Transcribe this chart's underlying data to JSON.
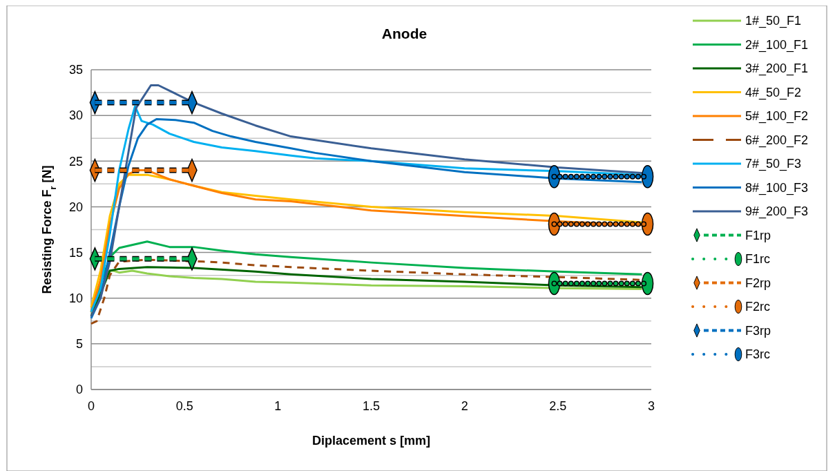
{
  "chart_data": {
    "type": "line",
    "title": "Anode",
    "xlabel": "Diplacement s [mm]",
    "ylabel": "Resisting Force F$_{r}$ [N]",
    "xlim": [
      0,
      3
    ],
    "xticks": [
      0,
      0.5,
      1,
      1.5,
      2,
      2.5,
      3
    ],
    "ylim": [
      0,
      35
    ],
    "yticks": [
      0,
      {
        "value": 2.5,
        "label": null
      },
      5,
      {
        "value": 7.5,
        "label": null
      },
      10,
      {
        "value": 12.5,
        "label": null
      },
      15,
      {
        "value": 17.5,
        "label": null
      },
      20,
      {
        "value": 22.5,
        "label": null
      },
      25,
      {
        "value": 27.5,
        "label": null
      },
      30,
      {
        "value": 32.5,
        "label": null
      },
      35
    ],
    "grid": "y",
    "legend": "right",
    "series": [
      {
        "name": "1#_50_F1",
        "color": "#92d050",
        "x": [
          0,
          0.05,
          0.1,
          0.12,
          0.15,
          0.22,
          0.3,
          0.42,
          0.55,
          0.7,
          0.88,
          1.07,
          1.5,
          2,
          2.5,
          2.95
        ],
        "values": [
          9,
          11,
          13,
          13,
          12.8,
          13,
          12.7,
          12.4,
          12.2,
          12.1,
          11.8,
          11.7,
          11.4,
          11.3,
          11.1,
          11
        ]
      },
      {
        "name": "2#_100_F1",
        "color": "#00b050",
        "x": [
          0,
          0.05,
          0.1,
          0.15,
          0.3,
          0.42,
          0.55,
          0.7,
          0.88,
          1.07,
          1.5,
          2,
          2.5,
          2.95
        ],
        "values": [
          8.5,
          11.5,
          14.5,
          15.5,
          16.2,
          15.6,
          15.6,
          15.2,
          14.8,
          14.5,
          13.9,
          13.3,
          12.9,
          12.6
        ]
      },
      {
        "name": "3#_200_F1",
        "color": "#006400",
        "x": [
          0,
          0.05,
          0.1,
          0.15,
          0.3,
          0.55,
          0.88,
          1.07,
          1.5,
          2,
          2.5,
          2.95
        ],
        "values": [
          8,
          10.5,
          13,
          13.2,
          13.4,
          13.3,
          12.9,
          12.6,
          12.1,
          11.8,
          11.4,
          11.2
        ]
      },
      {
        "name": "4#_50_F2",
        "color": "#ffc000",
        "x": [
          0,
          0.05,
          0.1,
          0.15,
          0.2,
          0.25,
          0.3,
          0.42,
          0.55,
          0.7,
          0.88,
          1.07,
          1.5,
          2,
          2.5,
          2.95
        ],
        "values": [
          9,
          13,
          19,
          22.5,
          23.5,
          23.5,
          23.5,
          23,
          22.3,
          21.6,
          21.2,
          20.8,
          20,
          19.4,
          19,
          18.3
        ]
      },
      {
        "name": "5#_100_F2",
        "color": "#ff8000",
        "x": [
          0,
          0.05,
          0.1,
          0.15,
          0.2,
          0.25,
          0.3,
          0.42,
          0.55,
          0.7,
          0.88,
          1.07,
          1.5,
          2,
          2.5,
          2.95
        ],
        "values": [
          8.5,
          12,
          18,
          22,
          23.6,
          24,
          24,
          23,
          22.3,
          21.5,
          20.8,
          20.6,
          19.6,
          19,
          18.4,
          18
        ]
      },
      {
        "name": "6#_200_F2",
        "color": "#9c4a0f",
        "line_style": "dashed",
        "x": [
          0,
          0.03,
          0.07,
          0.1,
          0.15,
          0.3,
          0.6,
          0.7,
          0.88,
          1.07,
          1.5,
          2,
          2.5,
          2.95
        ],
        "values": [
          7.2,
          7.5,
          10,
          12.5,
          14,
          14.2,
          14,
          13.9,
          13.6,
          13.4,
          13,
          12.6,
          12.3,
          12
        ]
      },
      {
        "name": "7#_50_F3",
        "color": "#00b0f0",
        "x": [
          0,
          0.05,
          0.1,
          0.15,
          0.2,
          0.235,
          0.27,
          0.33,
          0.42,
          0.55,
          0.7,
          0.88,
          1.07,
          1.2,
          1.5,
          2,
          2.5,
          2.95
        ],
        "values": [
          8.5,
          11,
          17,
          24,
          28.5,
          31,
          29.4,
          29,
          28,
          27.1,
          26.5,
          26.1,
          25.6,
          25.3,
          25,
          24.2,
          23.9,
          23.5
        ]
      },
      {
        "name": "8#_100_F3",
        "color": "#0070c0",
        "x": [
          0,
          0.05,
          0.1,
          0.15,
          0.2,
          0.25,
          0.3,
          0.35,
          0.45,
          0.55,
          0.65,
          0.75,
          0.88,
          1.07,
          1.2,
          1.5,
          2,
          2.5,
          2.95
        ],
        "values": [
          7.8,
          10,
          15,
          20,
          24.5,
          27.5,
          29,
          29.6,
          29.5,
          29.2,
          28.3,
          27.7,
          27.1,
          26.4,
          25.9,
          25,
          23.8,
          23.1,
          22.7
        ]
      },
      {
        "name": "9#_200_F3",
        "color": "#3a5f94",
        "x": [
          0,
          0.05,
          0.1,
          0.15,
          0.2,
          0.24,
          0.32,
          0.36,
          0.55,
          0.7,
          0.88,
          1.07,
          1.5,
          2,
          2.5,
          2.95
        ],
        "values": [
          8,
          10,
          14,
          20,
          26,
          30.8,
          33.3,
          33.3,
          31.4,
          30.2,
          28.9,
          27.7,
          26.4,
          25.2,
          24.3,
          23.7
        ]
      },
      {
        "name": "F1rp",
        "color": "#00b050",
        "line_style": "dashed",
        "marker": "diamond",
        "x": [
          0.02,
          0.54
        ],
        "values": [
          14.3,
          14.3
        ]
      },
      {
        "name": "F1rc",
        "color": "#00b050",
        "line_style": "dotted",
        "marker": "circle",
        "x": [
          2.48,
          2.98
        ],
        "values": [
          11.6,
          11.6
        ]
      },
      {
        "name": "F2rp",
        "color": "#e36c0a",
        "line_style": "dashed",
        "marker": "diamond",
        "x": [
          0.02,
          0.54
        ],
        "values": [
          24,
          24
        ]
      },
      {
        "name": "F2rc",
        "color": "#e36c0a",
        "line_style": "dotted",
        "marker": "circle",
        "x": [
          2.48,
          2.98
        ],
        "values": [
          18.1,
          18.1
        ]
      },
      {
        "name": "F3rp",
        "color": "#0070c0",
        "line_style": "dashed",
        "marker": "diamond",
        "x": [
          0.02,
          0.54
        ],
        "values": [
          31.4,
          31.4
        ]
      },
      {
        "name": "F3rc",
        "color": "#0070c0",
        "line_style": "dotted",
        "marker": "circle",
        "x": [
          2.48,
          2.98
        ],
        "values": [
          23.3,
          23.3
        ]
      }
    ]
  }
}
